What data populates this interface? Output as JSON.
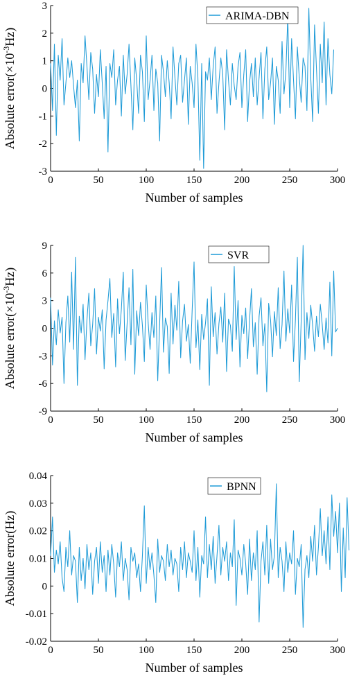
{
  "chart_data": [
    {
      "type": "line",
      "title": "",
      "xlabel": "Number of samples",
      "ylabel_parts": [
        "Absolute error(×10",
        "-3",
        "Hz)"
      ],
      "xlim": [
        0,
        300
      ],
      "ylim": [
        -3,
        3
      ],
      "x_ticks": [
        0,
        50,
        100,
        150,
        200,
        250,
        300
      ],
      "y_ticks": [
        -3,
        -2,
        -1,
        0,
        1,
        2,
        3
      ],
      "legend_position": "top-right",
      "series": [
        {
          "name": "ARIMA-DBN",
          "color": "#1f9bd7",
          "x_start": 0,
          "x_step": 2,
          "values": [
            0.9,
            -0.8,
            1.6,
            -1.7,
            1.2,
            0.3,
            1.8,
            -0.6,
            0.2,
            1.1,
            0.4,
            1.0,
            0.1,
            -0.7,
            0.3,
            -1.9,
            0.9,
            0.2,
            1.9,
            0.8,
            -0.4,
            1.3,
            0.7,
            -0.9,
            0.5,
            -0.3,
            1.4,
            0.2,
            -1.1,
            0.8,
            -2.3,
            0.9,
            0.4,
            1.4,
            -0.6,
            0.3,
            0.8,
            -1.0,
            1.2,
            -0.2,
            0.5,
            1.6,
            0.1,
            -1.5,
            1.1,
            0.3,
            -0.9,
            1.2,
            0.6,
            -1.2,
            1.9,
            -0.4,
            0.3,
            1.2,
            -0.8,
            0.7,
            0.2,
            -1.9,
            1.2,
            0.6,
            -0.3,
            1.0,
            0.2,
            -1.1,
            1.5,
            0.4,
            -0.6,
            0.9,
            1.2,
            -0.5,
            0.3,
            1.1,
            -1.3,
            0.8,
            0.2,
            -0.7,
            1.6,
            0.4,
            -2.6,
            0.9,
            -2.9,
            0.6,
            0.3,
            1.1,
            -0.4,
            0.8,
            1.5,
            -0.9,
            0.2,
            1.1,
            0.5,
            -1.5,
            1.4,
            0.3,
            -0.6,
            0.9,
            0.1,
            -0.4,
            0.8,
            1.3,
            -0.7,
            0.5,
            1.4,
            -1.2,
            0.2,
            0.9,
            -0.3,
            1.1,
            -0.6,
            0.4,
            1.3,
            -1.1,
            0.7,
            1.5,
            -0.4,
            0.2,
            1.1,
            -1.3,
            0.8,
            0.3,
            -0.9,
            1.7,
            -0.2,
            0.6,
            2.6,
            -0.7,
            1.8,
            0.3,
            -1.1,
            1.5,
            0.4,
            -0.5,
            1.1,
            0.8,
            -0.8,
            2.9,
            0.4,
            -1.2,
            2.3,
            0.7,
            -0.9,
            1.6,
            0.2,
            2.4,
            -0.6,
            1.8,
            0.5,
            -0.2,
            1.4
          ]
        }
      ]
    },
    {
      "type": "line",
      "title": "",
      "xlabel": "Number of samples",
      "ylabel_parts": [
        "Absolute error(×10",
        "-3",
        "Hz)"
      ],
      "xlim": [
        0,
        300
      ],
      "ylim": [
        -9,
        9
      ],
      "x_ticks": [
        0,
        50,
        100,
        150,
        200,
        250,
        300
      ],
      "y_ticks": [
        -9,
        -6,
        -3,
        0,
        3,
        6,
        9
      ],
      "legend_position": "top-right",
      "series": [
        {
          "name": "SVR",
          "color": "#1f9bd7",
          "x_start": 0,
          "x_step": 2,
          "values": [
            3.3,
            -4.0,
            0.8,
            -1.8,
            2.0,
            -0.5,
            1.2,
            -6.0,
            0.6,
            3.5,
            -1.5,
            6.1,
            -2.3,
            7.7,
            -6.2,
            1.3,
            -0.5,
            2.6,
            -3.4,
            0.9,
            3.8,
            -1.9,
            0.4,
            4.3,
            -2.8,
            1.2,
            -0.3,
            2.0,
            -4.4,
            0.9,
            3.0,
            5.4,
            -1.0,
            1.6,
            -4.2,
            3.2,
            -0.6,
            2.1,
            6.1,
            -3.5,
            0.5,
            4.4,
            -1.8,
            6.4,
            -5.0,
            1.9,
            -0.8,
            2.8,
            0.3,
            -3.6,
            4.7,
            0.6,
            -2.3,
            1.7,
            -1.0,
            3.5,
            -5.7,
            0.4,
            6.6,
            -2.6,
            1.1,
            0.2,
            -4.9,
            3.8,
            -1.7,
            2.5,
            -0.2,
            5.1,
            -3.2,
            0.8,
            2.6,
            -1.4,
            0.4,
            -3.8,
            1.9,
            7.2,
            -2.1,
            0.9,
            -4.5,
            1.5,
            -1.2,
            0.6,
            3.2,
            -6.2,
            4.5,
            -0.9,
            1.7,
            -2.8,
            0.5,
            2.3,
            -1.5,
            3.8,
            -4.7,
            1.0,
            0.3,
            -2.5,
            6.7,
            -1.2,
            3.0,
            -4.2,
            1.4,
            -0.6,
            2.2,
            -3.3,
            0.8,
            4.3,
            -2.0,
            0.6,
            -5.0,
            1.3,
            3.3,
            -1.9,
            0.5,
            -6.9,
            2.7,
            0.9,
            -3.1,
            1.8,
            -0.8,
            4.4,
            -2.2,
            0.4,
            6.2,
            -1.4,
            2.1,
            -0.5,
            4.7,
            -3.6,
            1.0,
            7.7,
            -5.8,
            0.8,
            9.0,
            -3.4,
            1.7,
            -1.1,
            2.5,
            0.3,
            -2.5,
            1.3,
            -0.9,
            2.6,
            0.4,
            -2.3,
            1.1,
            -1.6,
            5.0,
            -3.0,
            6.2,
            -0.4,
            0.0
          ]
        }
      ]
    },
    {
      "type": "line",
      "title": "",
      "xlabel": "Number of samples",
      "ylabel_parts": [
        "Absolute error(Hz)",
        "",
        ""
      ],
      "xlim": [
        0,
        300
      ],
      "ylim": [
        -0.02,
        0.04
      ],
      "x_ticks": [
        0,
        50,
        100,
        150,
        200,
        250,
        300
      ],
      "y_ticks": [
        -0.02,
        -0.01,
        0,
        0.01,
        0.02,
        0.03,
        0.04
      ],
      "y_tick_labels": [
        "-0.02",
        "-0.01",
        "0",
        "0.01",
        "0.02",
        "0.03",
        "0.04"
      ],
      "legend_position": "top-right",
      "series": [
        {
          "name": "BPNN",
          "color": "#1f9bd7",
          "x_start": 0,
          "x_step": 2,
          "values": [
            0.011,
            0.025,
            0.005,
            0.013,
            0.008,
            0.016,
            0.003,
            -0.002,
            0.014,
            0.007,
            0.02,
            0.004,
            0.011,
            0.009,
            -0.006,
            0.014,
            0.002,
            0.01,
            -0.001,
            0.015,
            0.006,
            0.012,
            -0.003,
            0.009,
            0.014,
            0.001,
            0.016,
            0.005,
            0.011,
            -0.002,
            0.013,
            0.004,
            0.015,
            0.008,
            -0.004,
            0.012,
            0.007,
            0.016,
            0.002,
            0.01,
            0.006,
            -0.005,
            0.014,
            0.009,
            0.012,
            0.003,
            0.008,
            -0.002,
            0.011,
            0.029,
            0.001,
            0.014,
            0.006,
            0.012,
            0.004,
            -0.006,
            0.017,
            0.005,
            0.011,
            0.009,
            0.002,
            0.015,
            0.007,
            0.013,
            0.004,
            0.01,
            0.008,
            -0.002,
            0.014,
            0.006,
            0.016,
            0.003,
            0.012,
            0.009,
            0.005,
            0.02,
            0.002,
            0.014,
            -0.004,
            0.011,
            0.008,
            0.025,
            0.003,
            0.015,
            0.006,
            0.018,
            0.001,
            0.011,
            0.022,
            0.004,
            0.014,
            0.009,
            0.016,
            0.002,
            0.012,
            0.007,
            0.024,
            -0.007,
            0.013,
            0.01,
            0.004,
            0.015,
            0.008,
            -0.003,
            0.017,
            0.002,
            0.012,
            0.006,
            0.02,
            -0.013,
            0.009,
            0.016,
            0.004,
            0.022,
            0.001,
            0.017,
            0.006,
            0.011,
            0.037,
            0.003,
            0.014,
            0.009,
            -0.002,
            0.016,
            0.005,
            0.012,
            0.008,
            0.02,
            -0.003,
            0.01,
            0.007,
            0.015,
            -0.015,
            0.006,
            0.011,
            0.003,
            0.018,
            0.009,
            0.022,
            0.004,
            0.014,
            0.028,
            0.011,
            0.02,
            0.008,
            0.025,
            0.006,
            0.033,
            0.018,
            0.027,
            0.012,
            0.03,
            -0.002,
            0.021,
            0.003,
            0.032,
            0.013
          ]
        }
      ]
    }
  ]
}
